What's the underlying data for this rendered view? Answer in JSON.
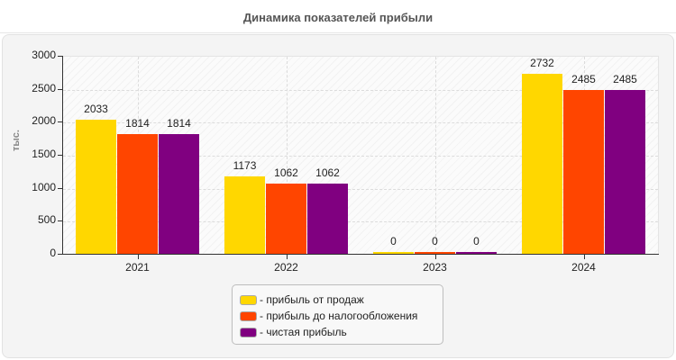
{
  "header": {
    "title": "Динамика показателей прибыли"
  },
  "colors": {
    "sales": "#FFD700",
    "pretax": "#FF4500",
    "net": "#800080"
  },
  "chart_data": {
    "type": "bar",
    "title": "Динамика показателей прибыли",
    "xlabel": "",
    "ylabel": "тыс.",
    "ylim": [
      0,
      3000
    ],
    "yticks": [
      "0",
      "500",
      "1000",
      "1500",
      "2000",
      "2500",
      "3000"
    ],
    "categories": [
      "2021",
      "2022",
      "2023",
      "2024"
    ],
    "series": [
      {
        "name": "- прибыль от продаж",
        "color": "#FFD700",
        "values": [
          2033,
          1173,
          0,
          2732
        ]
      },
      {
        "name": "- прибыль до налогообложения",
        "color": "#FF4500",
        "values": [
          1814,
          1062,
          0,
          2485
        ]
      },
      {
        "name": "- чистая прибыль",
        "color": "#800080",
        "values": [
          1814,
          1062,
          0,
          2485
        ]
      }
    ],
    "grid": true,
    "legend_position": "bottom"
  },
  "legend": {
    "items": [
      {
        "label": "- прибыль от продаж"
      },
      {
        "label": "- прибыль до налогообложения"
      },
      {
        "label": "- чистая прибыль"
      }
    ]
  }
}
